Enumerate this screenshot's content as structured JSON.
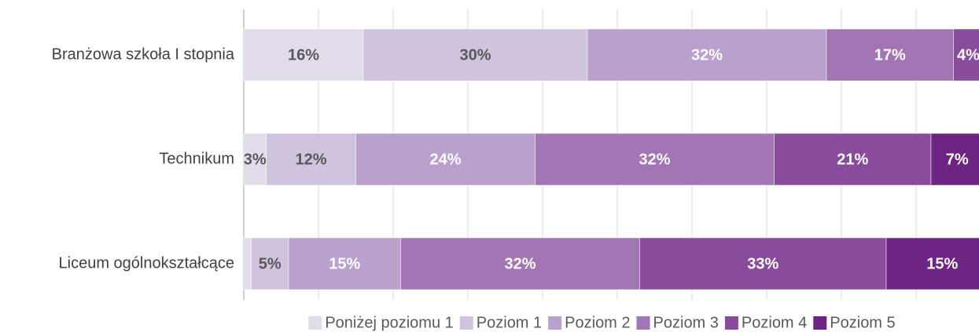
{
  "chart_data": {
    "type": "stacked-barh",
    "categories": [
      "Branżowa szkoła I stopnia",
      "Technikum",
      "Liceum ogólnokształcące"
    ],
    "series": [
      {
        "name": "Poniżej poziomu 1",
        "color": "#e2dbe9",
        "values": [
          16,
          3,
          1
        ],
        "value_labels": [
          "16%",
          "3%",
          null
        ]
      },
      {
        "name": "Poziom 1",
        "color": "#cfc3de",
        "values": [
          30,
          12,
          5
        ],
        "value_labels": [
          "30%",
          "12%",
          "5%"
        ]
      },
      {
        "name": "Poziom 2",
        "color": "#b9a0cd",
        "values": [
          32,
          24,
          15
        ],
        "value_labels": [
          "32%",
          "24%",
          "15%"
        ]
      },
      {
        "name": "Poziom 3",
        "color": "#a375b4",
        "values": [
          17,
          32,
          32
        ],
        "value_labels": [
          "17%",
          "32%",
          "32%"
        ]
      },
      {
        "name": "Poziom 4",
        "color": "#894b9c",
        "values": [
          4,
          21,
          33
        ],
        "value_labels": [
          "4%",
          "21%",
          "33%"
        ]
      },
      {
        "name": "Poziom 5",
        "color": "#6e2483",
        "values": [
          0,
          7,
          15
        ],
        "value_labels": [
          null,
          "7%",
          "15%"
        ]
      }
    ],
    "xlim": [
      0,
      100
    ],
    "xticks": [
      0,
      10,
      20,
      30,
      40,
      50,
      60,
      70,
      80,
      90
    ],
    "grid": true,
    "legend": "bottom"
  }
}
